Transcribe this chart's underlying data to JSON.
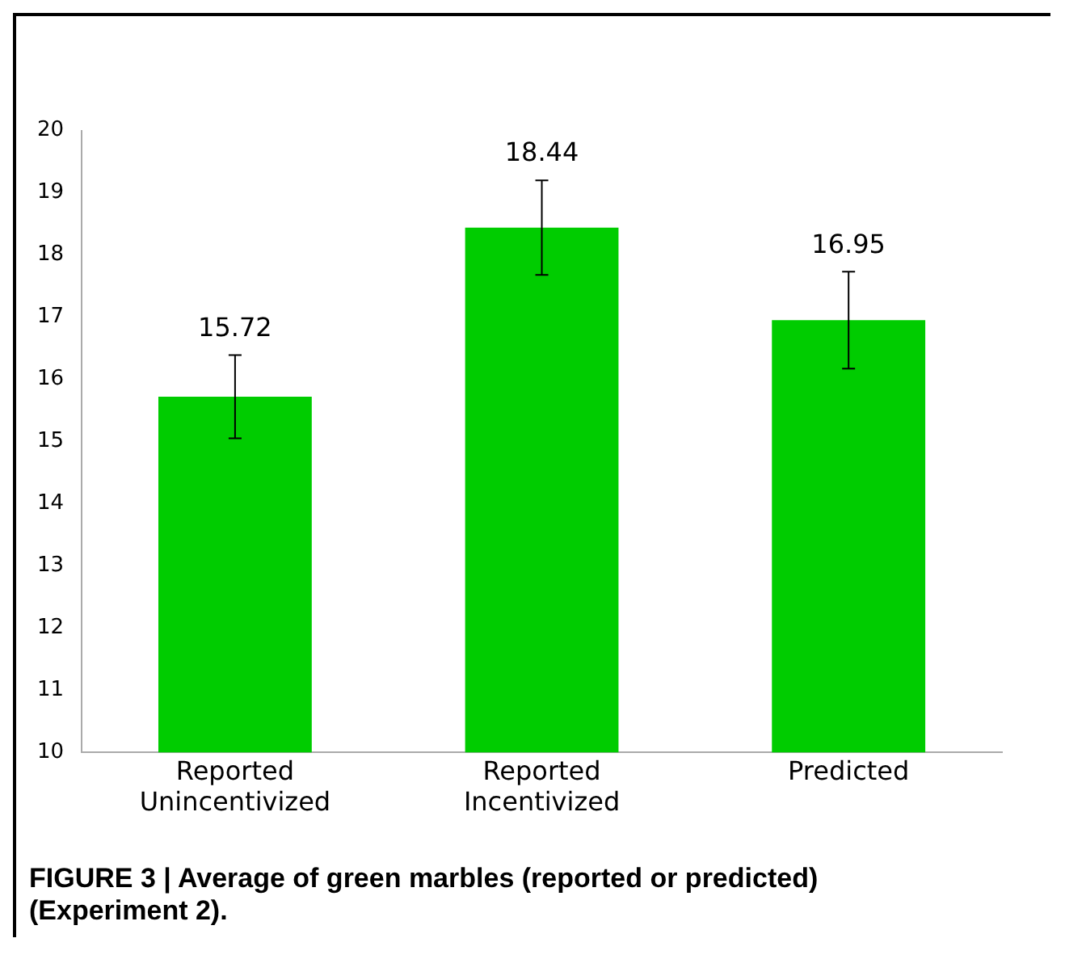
{
  "chart_data": {
    "type": "bar",
    "title": "FIGURE 3 | Average of green marbles (reported or predicted) (Experiment 2).",
    "categories": [
      "Reported\nUnincentivized",
      "Reported\nIncentivized",
      "Predicted"
    ],
    "values": [
      15.72,
      18.44,
      16.95
    ],
    "errors": [
      0.67,
      0.76,
      0.78
    ],
    "color": "#00cc00",
    "data_labels": true,
    "ylim": [
      10,
      20
    ],
    "yticks": [
      10,
      11,
      12,
      13,
      14,
      15,
      16,
      17,
      18,
      19,
      20
    ],
    "grid": false,
    "legend": false
  }
}
